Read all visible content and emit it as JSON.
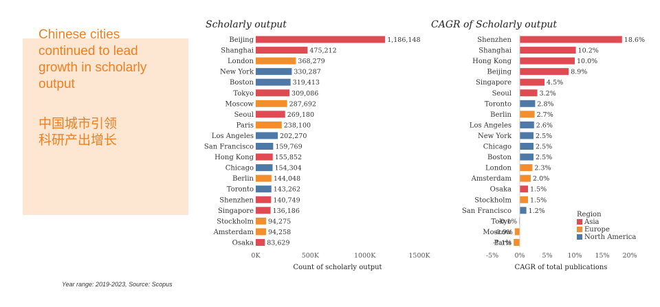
{
  "panel": {
    "title_en": "Chinese cities continued to lead growth in scholarly output",
    "title_cn_line1": "中国城市引领",
    "title_cn_line2": "科研产出增长"
  },
  "footnote": "Year range: 2019-2023, Source: Scopus",
  "colors": {
    "Asia": "#e04b53",
    "Europe": "#f28e2b",
    "North America": "#4e79a7"
  },
  "chart_data": [
    {
      "type": "bar",
      "orientation": "horizontal",
      "title": "Scholarly output",
      "xlabel": "Count of scholarly output",
      "xlim": [
        0,
        1500000
      ],
      "xticks": [
        0,
        500000,
        1000000,
        1500000
      ],
      "xtick_labels": [
        "0K",
        "500K",
        "1000K",
        "1500K"
      ],
      "categories": [
        "Beijing",
        "Shanghai",
        "London",
        "New York",
        "Boston",
        "Tokyo",
        "Moscow",
        "Seoul",
        "Paris",
        "Los Angeles",
        "San Francisco",
        "Hong Kong",
        "Chicago",
        "Berlin",
        "Toronto",
        "Shenzhen",
        "Singapore",
        "Stockholm",
        "Amsterdam",
        "Osaka"
      ],
      "values": [
        1186148,
        475212,
        368279,
        330287,
        319413,
        309086,
        287692,
        269180,
        238100,
        202270,
        159769,
        155852,
        154304,
        144048,
        143262,
        140749,
        136186,
        94275,
        94258,
        83629
      ],
      "value_labels": [
        "1,186,148",
        "475,212",
        "368,279",
        "330,287",
        "319,413",
        "309,086",
        "287,692",
        "269,180",
        "238,100",
        "202,270",
        "159,769",
        "155,852",
        "154,304",
        "144,048",
        "143,262",
        "140,749",
        "136,186",
        "94,275",
        "94,258",
        "83,629"
      ],
      "regions": [
        "Asia",
        "Asia",
        "Europe",
        "North America",
        "North America",
        "Asia",
        "Europe",
        "Asia",
        "Europe",
        "North America",
        "North America",
        "Asia",
        "North America",
        "Europe",
        "North America",
        "Asia",
        "Asia",
        "Europe",
        "Europe",
        "Asia"
      ]
    },
    {
      "type": "bar",
      "orientation": "horizontal",
      "title": "CAGR of Scholarly output",
      "xlabel": "CAGR of total publications",
      "xlim": [
        -5,
        20
      ],
      "xticks": [
        -5,
        0,
        5,
        10,
        15,
        20
      ],
      "xtick_labels": [
        "-5%",
        "0%",
        "5%",
        "10%",
        "15%",
        "20%"
      ],
      "categories": [
        "Shenzhen",
        "Shanghai",
        "Hong Kong",
        "Beijing",
        "Singapore",
        "Seoul",
        "Toronto",
        "Berlin",
        "Los Angeles",
        "New York",
        "Chicago",
        "Boston",
        "London",
        "Amsterdam",
        "Osaka",
        "Stockholm",
        "San Francisco",
        "Tokyo",
        "Moscow",
        "Paris"
      ],
      "values": [
        18.6,
        10.2,
        10.0,
        8.9,
        4.5,
        3.2,
        2.8,
        2.7,
        2.6,
        2.5,
        2.5,
        2.5,
        2.3,
        2.0,
        1.5,
        1.5,
        1.2,
        -0.1,
        -0.9,
        -1.1
      ],
      "value_labels": [
        "18.6%",
        "10.2%",
        "10.0%",
        "8.9%",
        "4.5%",
        "3.2%",
        "2.8%",
        "2.7%",
        "2.6%",
        "2.5%",
        "2.5%",
        "2.5%",
        "2.3%",
        "2.0%",
        "1.5%",
        "1.5%",
        "1.2%",
        "-0.1%",
        "-0.9%",
        "-1.1%"
      ],
      "regions": [
        "Asia",
        "Asia",
        "Asia",
        "Asia",
        "Asia",
        "Asia",
        "North America",
        "Europe",
        "North America",
        "North America",
        "North America",
        "North America",
        "Europe",
        "Europe",
        "Asia",
        "Europe",
        "North America",
        "Asia",
        "Europe",
        "Europe"
      ],
      "legend": {
        "title": "Region",
        "entries": [
          "Asia",
          "Europe",
          "North America"
        ],
        "placement": "bottom-right"
      }
    }
  ]
}
